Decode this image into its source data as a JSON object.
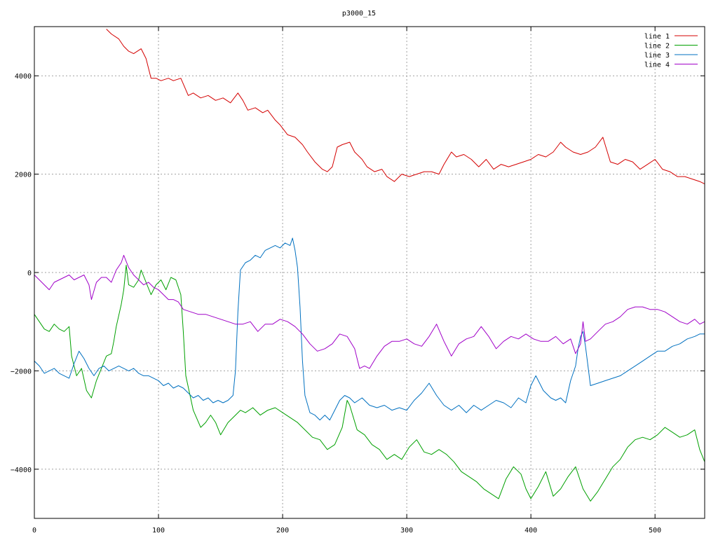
{
  "chart_data": {
    "type": "line",
    "title": "p3000_15",
    "xlabel": "",
    "ylabel": "",
    "xlim": [
      0,
      540
    ],
    "ylim": [
      -5000,
      5000
    ],
    "xticks": [
      0,
      100,
      200,
      300,
      400,
      500
    ],
    "yticks": [
      -4000,
      -2000,
      0,
      2000,
      4000
    ],
    "xtick_labels": [
      "0",
      "100",
      "200",
      "300",
      "400",
      "500"
    ],
    "ytick_labels": [
      "−4000",
      "−2000",
      "0",
      "2000",
      "4000"
    ],
    "grid": true,
    "legend_position": "top-right",
    "series": [
      {
        "name": "line 1",
        "color": "#d40000",
        "x": [
          58,
          62,
          68,
          72,
          76,
          80,
          86,
          90,
          94,
          98,
          102,
          108,
          112,
          118,
          124,
          128,
          134,
          140,
          146,
          152,
          158,
          164,
          168,
          172,
          178,
          184,
          188,
          194,
          198,
          204,
          210,
          216,
          220,
          226,
          232,
          236,
          240,
          244,
          248,
          254,
          258,
          264,
          268,
          274,
          280,
          284,
          290,
          296,
          302,
          308,
          314,
          320,
          326,
          330,
          336,
          340,
          346,
          352,
          358,
          364,
          370,
          376,
          382,
          388,
          394,
          400,
          406,
          412,
          418,
          424,
          428,
          434,
          440,
          446,
          452,
          458,
          464,
          470,
          476,
          482,
          488,
          494,
          500,
          506,
          512,
          518,
          524,
          530,
          536,
          540
        ],
        "y": [
          4950,
          4850,
          4750,
          4600,
          4500,
          4450,
          4550,
          4350,
          3950,
          3950,
          3900,
          3950,
          3900,
          3950,
          3600,
          3650,
          3550,
          3600,
          3500,
          3550,
          3450,
          3650,
          3500,
          3300,
          3350,
          3250,
          3300,
          3100,
          3000,
          2800,
          2750,
          2600,
          2450,
          2250,
          2100,
          2050,
          2150,
          2550,
          2600,
          2650,
          2450,
          2300,
          2150,
          2050,
          2100,
          1950,
          1850,
          2000,
          1950,
          2000,
          2050,
          2050,
          2000,
          2200,
          2450,
          2350,
          2400,
          2300,
          2150,
          2300,
          2100,
          2200,
          2150,
          2200,
          2250,
          2300,
          2400,
          2350,
          2450,
          2650,
          2550,
          2450,
          2400,
          2450,
          2550,
          2750,
          2250,
          2200,
          2300,
          2250,
          2100,
          2200,
          2300,
          2100,
          2050,
          1950,
          1950,
          1900,
          1850,
          1800
        ]
      },
      {
        "name": "line 2",
        "color": "#00a000",
        "x": [
          0,
          4,
          8,
          12,
          16,
          20,
          24,
          28,
          30,
          34,
          38,
          42,
          46,
          50,
          54,
          58,
          62,
          64,
          66,
          70,
          72,
          74,
          76,
          80,
          84,
          86,
          90,
          94,
          98,
          102,
          106,
          110,
          114,
          118,
          120,
          122,
          128,
          134,
          138,
          142,
          146,
          150,
          156,
          160,
          166,
          170,
          176,
          182,
          188,
          194,
          200,
          206,
          212,
          218,
          224,
          230,
          236,
          242,
          248,
          252,
          254,
          260,
          266,
          272,
          278,
          284,
          290,
          296,
          302,
          308,
          314,
          320,
          326,
          332,
          338,
          344,
          350,
          356,
          362,
          368,
          374,
          380,
          386,
          392,
          396,
          400,
          406,
          412,
          418,
          424,
          430,
          436,
          442,
          448,
          454,
          460,
          466,
          472,
          478,
          484,
          490,
          496,
          502,
          508,
          514,
          520,
          526,
          532,
          536,
          540
        ],
        "y": [
          -850,
          -1000,
          -1150,
          -1200,
          -1050,
          -1150,
          -1200,
          -1100,
          -1700,
          -2100,
          -1950,
          -2400,
          -2550,
          -2200,
          -1950,
          -1700,
          -1650,
          -1400,
          -1100,
          -650,
          -350,
          150,
          -250,
          -300,
          -150,
          50,
          -200,
          -450,
          -250,
          -150,
          -350,
          -100,
          -150,
          -450,
          -1200,
          -2100,
          -2800,
          -3150,
          -3050,
          -2900,
          -3050,
          -3300,
          -3050,
          -2950,
          -2800,
          -2850,
          -2750,
          -2900,
          -2800,
          -2750,
          -2850,
          -2950,
          -3050,
          -3200,
          -3350,
          -3400,
          -3600,
          -3500,
          -3150,
          -2600,
          -2700,
          -3200,
          -3300,
          -3500,
          -3600,
          -3800,
          -3700,
          -3800,
          -3550,
          -3400,
          -3650,
          -3700,
          -3600,
          -3700,
          -3850,
          -4050,
          -4150,
          -4250,
          -4400,
          -4500,
          -4600,
          -4200,
          -3950,
          -4100,
          -4400,
          -4600,
          -4350,
          -4050,
          -4550,
          -4400,
          -4150,
          -3950,
          -4400,
          -4650,
          -4450,
          -4200,
          -3950,
          -3800,
          -3550,
          -3400,
          -3350,
          -3400,
          -3300,
          -3150,
          -3250,
          -3350,
          -3300,
          -3200,
          -3600,
          -3850
        ]
      },
      {
        "name": "line 3",
        "color": "#0070c0",
        "x": [
          0,
          4,
          8,
          12,
          16,
          20,
          24,
          28,
          32,
          36,
          40,
          44,
          48,
          52,
          56,
          60,
          64,
          68,
          72,
          76,
          80,
          84,
          88,
          92,
          96,
          100,
          104,
          108,
          112,
          116,
          120,
          124,
          128,
          132,
          136,
          140,
          144,
          148,
          152,
          156,
          160,
          162,
          164,
          166,
          170,
          174,
          178,
          182,
          186,
          190,
          194,
          198,
          202,
          206,
          208,
          210,
          212,
          214,
          216,
          218,
          222,
          226,
          230,
          234,
          238,
          242,
          246,
          250,
          254,
          258,
          264,
          270,
          276,
          282,
          288,
          294,
          300,
          306,
          312,
          318,
          324,
          330,
          336,
          342,
          348,
          354,
          360,
          366,
          372,
          378,
          384,
          390,
          396,
          400,
          404,
          410,
          416,
          420,
          424,
          428,
          432,
          436,
          438,
          440,
          442,
          444,
          448,
          454,
          460,
          466,
          472,
          478,
          484,
          490,
          496,
          502,
          508,
          514,
          520,
          526,
          532,
          536,
          540
        ],
        "y": [
          -1800,
          -1900,
          -2050,
          -2000,
          -1950,
          -2050,
          -2100,
          -2150,
          -1850,
          -1600,
          -1750,
          -1950,
          -2100,
          -1950,
          -1900,
          -2000,
          -1950,
          -1900,
          -1950,
          -2000,
          -1950,
          -2050,
          -2100,
          -2100,
          -2150,
          -2200,
          -2300,
          -2250,
          -2350,
          -2300,
          -2350,
          -2450,
          -2550,
          -2500,
          -2600,
          -2550,
          -2650,
          -2600,
          -2650,
          -2600,
          -2500,
          -2000,
          -800,
          50,
          200,
          250,
          350,
          300,
          450,
          500,
          550,
          500,
          600,
          550,
          700,
          450,
          100,
          -700,
          -1800,
          -2500,
          -2850,
          -2900,
          -3000,
          -2900,
          -3000,
          -2800,
          -2600,
          -2500,
          -2550,
          -2650,
          -2550,
          -2700,
          -2750,
          -2700,
          -2800,
          -2750,
          -2800,
          -2600,
          -2450,
          -2250,
          -2500,
          -2700,
          -2800,
          -2700,
          -2850,
          -2700,
          -2800,
          -2700,
          -2600,
          -2650,
          -2750,
          -2550,
          -2650,
          -2300,
          -2100,
          -2400,
          -2550,
          -2600,
          -2550,
          -2650,
          -2200,
          -1900,
          -1550,
          -1300,
          -1200,
          -1500,
          -2300,
          -2250,
          -2200,
          -2150,
          -2100,
          -2000,
          -1900,
          -1800,
          -1700,
          -1600,
          -1600,
          -1500,
          -1450,
          -1350,
          -1300,
          -1250,
          -1250
        ]
      },
      {
        "name": "line 4",
        "color": "#a000c8",
        "x": [
          0,
          4,
          8,
          12,
          16,
          20,
          24,
          28,
          32,
          36,
          40,
          44,
          46,
          50,
          54,
          58,
          62,
          66,
          70,
          72,
          76,
          80,
          84,
          88,
          92,
          96,
          100,
          104,
          108,
          112,
          116,
          120,
          126,
          132,
          138,
          144,
          150,
          156,
          162,
          168,
          174,
          180,
          186,
          192,
          198,
          204,
          210,
          216,
          222,
          228,
          234,
          240,
          246,
          252,
          258,
          262,
          266,
          270,
          276,
          282,
          288,
          294,
          300,
          306,
          312,
          318,
          324,
          330,
          336,
          342,
          348,
          354,
          360,
          366,
          372,
          378,
          384,
          390,
          396,
          402,
          408,
          414,
          420,
          426,
          432,
          436,
          440,
          442,
          444,
          448,
          454,
          460,
          466,
          472,
          478,
          484,
          490,
          496,
          502,
          508,
          514,
          520,
          526,
          532,
          536,
          540
        ],
        "y": [
          -50,
          -150,
          -250,
          -350,
          -200,
          -150,
          -100,
          -50,
          -150,
          -100,
          -50,
          -250,
          -550,
          -200,
          -100,
          -100,
          -200,
          50,
          200,
          350,
          100,
          -50,
          -150,
          -250,
          -200,
          -300,
          -350,
          -450,
          -550,
          -550,
          -600,
          -750,
          -800,
          -850,
          -850,
          -900,
          -950,
          -1000,
          -1050,
          -1050,
          -1000,
          -1200,
          -1050,
          -1050,
          -950,
          -1000,
          -1100,
          -1250,
          -1450,
          -1600,
          -1550,
          -1450,
          -1250,
          -1300,
          -1550,
          -1950,
          -1900,
          -1950,
          -1700,
          -1500,
          -1400,
          -1400,
          -1350,
          -1450,
          -1500,
          -1300,
          -1050,
          -1400,
          -1700,
          -1450,
          -1350,
          -1300,
          -1100,
          -1300,
          -1550,
          -1400,
          -1300,
          -1350,
          -1250,
          -1350,
          -1400,
          -1400,
          -1300,
          -1450,
          -1350,
          -1650,
          -1450,
          -1000,
          -1400,
          -1350,
          -1200,
          -1050,
          -1000,
          -900,
          -750,
          -700,
          -700,
          -750,
          -750,
          -800,
          -900,
          -1000,
          -1050,
          -950,
          -1050,
          -1000
        ]
      }
    ]
  }
}
